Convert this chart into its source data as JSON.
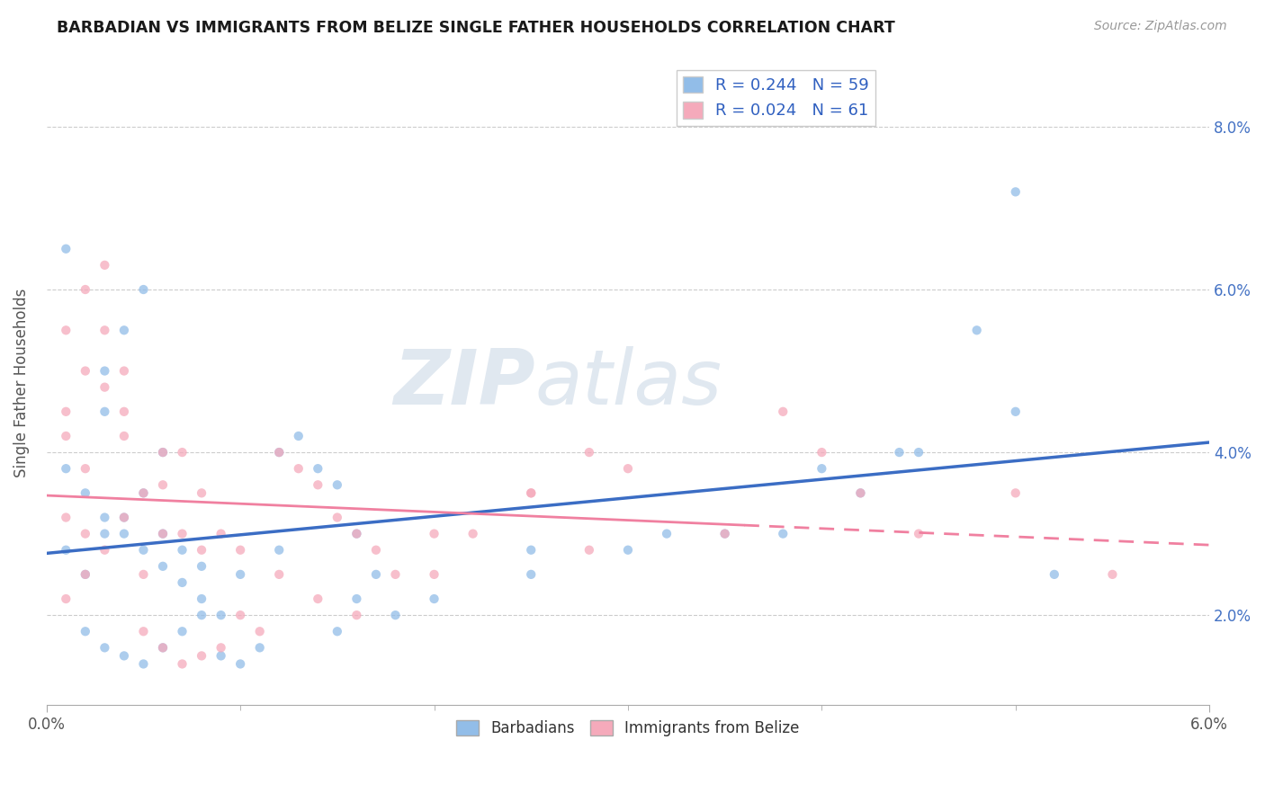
{
  "title": "BARBADIAN VS IMMIGRANTS FROM BELIZE SINGLE FATHER HOUSEHOLDS CORRELATION CHART",
  "source": "Source: ZipAtlas.com",
  "ylabel": "Single Father Households",
  "xlim": [
    0.0,
    0.06
  ],
  "ylim": [
    0.009,
    0.088
  ],
  "R_barbadian": 0.244,
  "N_barbadian": 59,
  "R_belize": 0.024,
  "N_belize": 61,
  "color_barbadian": "#92BDE8",
  "color_belize": "#F5AABB",
  "trendline_barbadian": "#3B6DC4",
  "trendline_belize": "#F080A0",
  "watermark_zip": "ZIP",
  "watermark_atlas": "atlas",
  "legend_label_barbadian": "Barbadians",
  "legend_label_belize": "Immigrants from Belize",
  "yticks": [
    0.02,
    0.04,
    0.06,
    0.08
  ],
  "xtick_labeled": [
    0.0,
    0.06
  ],
  "xtick_minor": [
    0.01,
    0.02,
    0.03,
    0.04,
    0.05
  ],
  "bx": [
    0.001,
    0.002,
    0.003,
    0.004,
    0.005,
    0.006,
    0.007,
    0.008,
    0.009,
    0.01,
    0.001,
    0.002,
    0.003,
    0.004,
    0.005,
    0.006,
    0.003,
    0.004,
    0.005,
    0.001,
    0.012,
    0.013,
    0.014,
    0.015,
    0.016,
    0.003,
    0.006,
    0.007,
    0.008,
    0.012,
    0.002,
    0.003,
    0.004,
    0.005,
    0.006,
    0.007,
    0.008,
    0.009,
    0.01,
    0.011,
    0.015,
    0.016,
    0.017,
    0.018,
    0.02,
    0.025,
    0.025,
    0.03,
    0.035,
    0.04,
    0.045,
    0.05,
    0.048,
    0.032,
    0.042,
    0.038,
    0.044,
    0.05,
    0.052
  ],
  "by": [
    0.028,
    0.025,
    0.03,
    0.032,
    0.028,
    0.026,
    0.024,
    0.022,
    0.02,
    0.025,
    0.038,
    0.035,
    0.032,
    0.03,
    0.035,
    0.04,
    0.05,
    0.055,
    0.06,
    0.065,
    0.04,
    0.042,
    0.038,
    0.036,
    0.03,
    0.045,
    0.03,
    0.028,
    0.026,
    0.028,
    0.018,
    0.016,
    0.015,
    0.014,
    0.016,
    0.018,
    0.02,
    0.015,
    0.014,
    0.016,
    0.018,
    0.022,
    0.025,
    0.02,
    0.022,
    0.028,
    0.025,
    0.028,
    0.03,
    0.038,
    0.04,
    0.045,
    0.055,
    0.03,
    0.035,
    0.03,
    0.04,
    0.072,
    0.025
  ],
  "zx": [
    0.001,
    0.002,
    0.003,
    0.004,
    0.005,
    0.006,
    0.001,
    0.002,
    0.003,
    0.004,
    0.001,
    0.002,
    0.003,
    0.004,
    0.005,
    0.006,
    0.007,
    0.008,
    0.009,
    0.01,
    0.001,
    0.002,
    0.001,
    0.002,
    0.003,
    0.004,
    0.006,
    0.007,
    0.008,
    0.012,
    0.012,
    0.013,
    0.014,
    0.015,
    0.016,
    0.017,
    0.018,
    0.02,
    0.025,
    0.028,
    0.005,
    0.006,
    0.007,
    0.008,
    0.009,
    0.01,
    0.011,
    0.014,
    0.016,
    0.02,
    0.022,
    0.025,
    0.028,
    0.03,
    0.035,
    0.038,
    0.04,
    0.042,
    0.045,
    0.05,
    0.055
  ],
  "zy": [
    0.032,
    0.03,
    0.028,
    0.032,
    0.035,
    0.04,
    0.055,
    0.06,
    0.063,
    0.045,
    0.042,
    0.038,
    0.048,
    0.05,
    0.025,
    0.03,
    0.04,
    0.035,
    0.03,
    0.028,
    0.022,
    0.025,
    0.045,
    0.05,
    0.055,
    0.042,
    0.036,
    0.03,
    0.028,
    0.025,
    0.04,
    0.038,
    0.036,
    0.032,
    0.03,
    0.028,
    0.025,
    0.03,
    0.035,
    0.028,
    0.018,
    0.016,
    0.014,
    0.015,
    0.016,
    0.02,
    0.018,
    0.022,
    0.02,
    0.025,
    0.03,
    0.035,
    0.04,
    0.038,
    0.03,
    0.045,
    0.04,
    0.035,
    0.03,
    0.035,
    0.025
  ]
}
